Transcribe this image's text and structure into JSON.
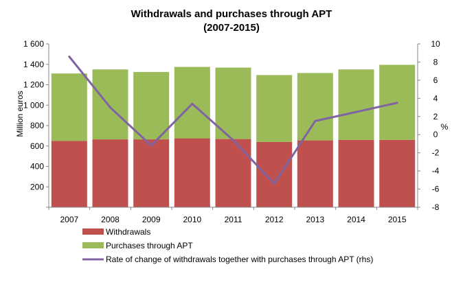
{
  "chart_data": {
    "type": "bar",
    "title": "Withdrawals and purchases through APT",
    "subtitle": "(2007-2015)",
    "categories": [
      "2007",
      "2008",
      "2009",
      "2010",
      "2011",
      "2012",
      "2013",
      "2014",
      "2015"
    ],
    "stacked": true,
    "series": [
      {
        "name": "Withdrawals",
        "type": "bar",
        "axis": "left",
        "color": "#c0504d",
        "values": [
          650,
          665,
          665,
          675,
          668,
          640,
          655,
          660,
          660
        ]
      },
      {
        "name": "Purchases through APT",
        "type": "bar",
        "axis": "left",
        "color": "#9bbb59",
        "values": [
          660,
          685,
          660,
          700,
          700,
          655,
          660,
          690,
          735
        ]
      },
      {
        "name": "Rate of change of withdrawals together with purchases through APT (rhs)",
        "type": "line",
        "axis": "right",
        "color": "#8064a2",
        "values": [
          8.6,
          3.0,
          -1.2,
          3.4,
          -0.6,
          -5.4,
          1.5,
          2.5,
          3.5
        ]
      }
    ],
    "ylabel": "Million euros",
    "ylim": [
      0,
      1600
    ],
    "yticks": [
      "",
      "200",
      "400",
      "600",
      "800",
      "1 000",
      "1 200",
      "1 400",
      "1 600"
    ],
    "y2label": "%",
    "y2lim": [
      -8,
      10
    ],
    "y2ticks": [
      "-8",
      "-6",
      "-4",
      "-2",
      "0",
      "2",
      "4",
      "6",
      "8",
      "10"
    ],
    "grid": false,
    "legend_position": "bottom"
  }
}
